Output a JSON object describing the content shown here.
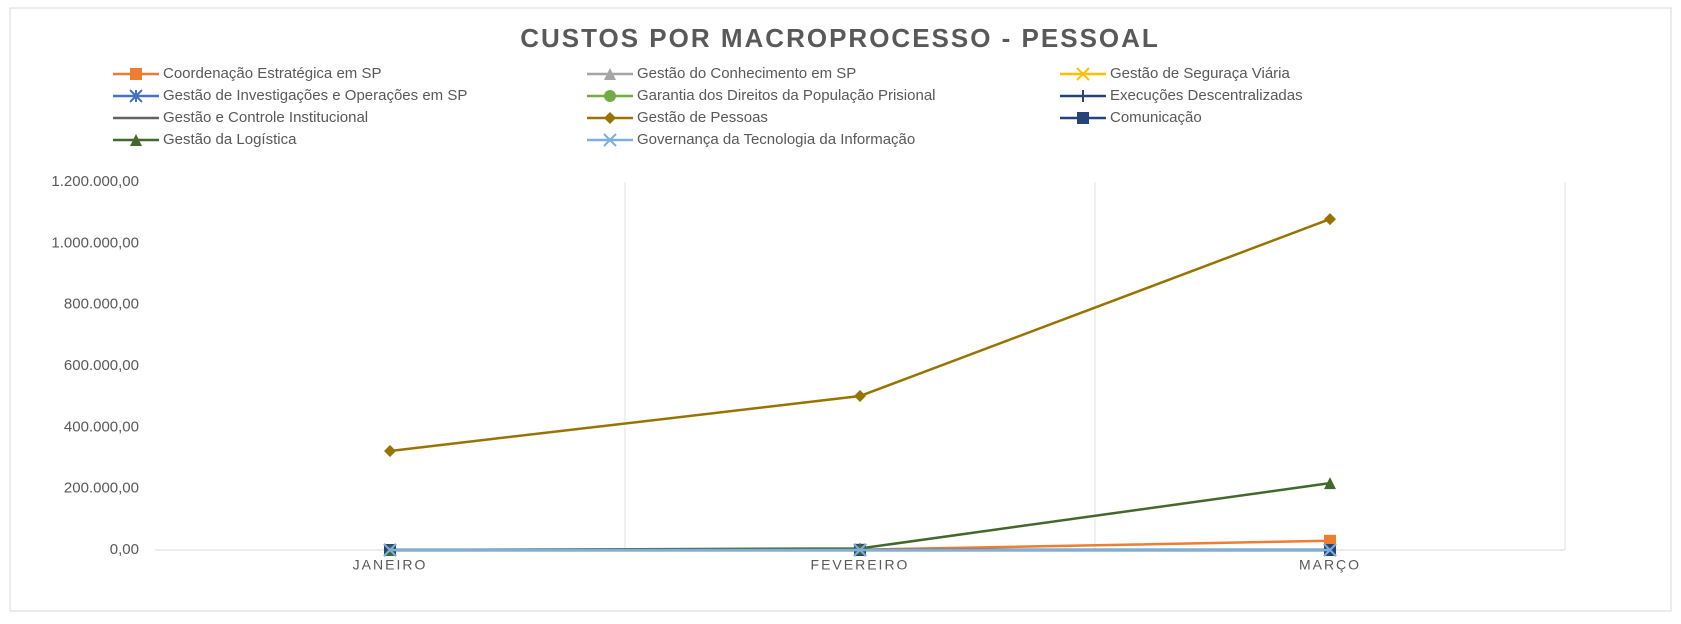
{
  "chart_data": {
    "type": "line",
    "title": "CUSTOS POR MACROPROCESSO - PESSOAL",
    "categories": [
      "JANEIRO",
      "FEVEREIRO",
      "MARÇO"
    ],
    "series": [
      {
        "name": "Coordenação Estratégica em SP",
        "color": "#ED7D31",
        "marker": "square",
        "values": [
          0,
          1000,
          30000
        ]
      },
      {
        "name": "Gestão do Conhecimento em SP",
        "color": "#A5A5A5",
        "marker": "triangle",
        "values": [
          0,
          0,
          0
        ]
      },
      {
        "name": "Gestão de Seguraça Viária",
        "color": "#FFC000",
        "marker": "x",
        "values": [
          0,
          0,
          0
        ]
      },
      {
        "name": "Gestão de Investigações e Operações em SP",
        "color": "#4472C4",
        "marker": "star",
        "values": [
          0,
          0,
          0
        ]
      },
      {
        "name": "Garantia dos Direitos da População Prisional",
        "color": "#70AD47",
        "marker": "circle",
        "values": [
          0,
          0,
          0
        ]
      },
      {
        "name": "Execuções Descentralizadas",
        "color": "#264478",
        "marker": "plus",
        "values": [
          0,
          0,
          0
        ]
      },
      {
        "name": "Gestão e Controle Institucional",
        "color": "#636363",
        "marker": "dash",
        "values": [
          0,
          0,
          0
        ]
      },
      {
        "name": "Gestão de Pessoas",
        "color": "#997300",
        "marker": "diamond",
        "values": [
          323000,
          502000,
          1079000
        ]
      },
      {
        "name": "Comunicação",
        "color": "#264478",
        "marker": "square",
        "values": [
          0,
          0,
          0
        ]
      },
      {
        "name": "Gestão da Logística",
        "color": "#43682B",
        "marker": "triangle",
        "values": [
          0,
          5000,
          218000
        ]
      },
      {
        "name": "Governança da Tecnologia da Informação",
        "color": "#7CAFDD",
        "marker": "x",
        "values": [
          0,
          0,
          0
        ]
      }
    ],
    "ylim": [
      0,
      1200000
    ],
    "yticks": [
      {
        "value": 0,
        "label": "0,00"
      },
      {
        "value": 200000,
        "label": "200.000,00"
      },
      {
        "value": 400000,
        "label": "400.000,00"
      },
      {
        "value": 600000,
        "label": "600.000,00"
      },
      {
        "value": 800000,
        "label": "800.000,00"
      },
      {
        "value": 1000000,
        "label": "1.000.000,00"
      },
      {
        "value": 1200000,
        "label": "1.200.000,00"
      }
    ],
    "grid": true
  }
}
